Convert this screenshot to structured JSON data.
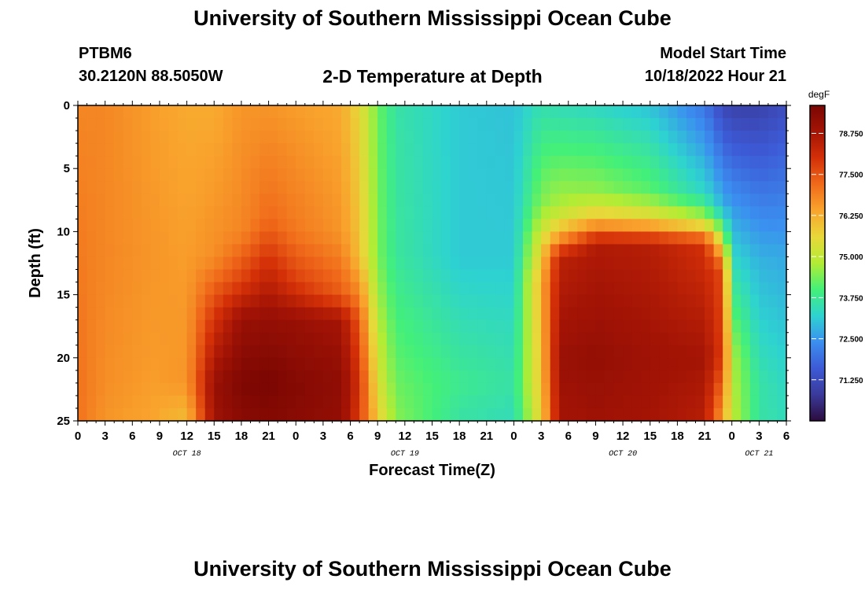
{
  "header": {
    "title": "University of Southern Mississippi Ocean Cube",
    "station": "PTBM6",
    "coords": "30.2120N  88.5050W",
    "plot_title": "2-D Temperature at Depth",
    "model_label": "Model Start Time",
    "model_time": "10/18/2022 Hour 21"
  },
  "footer": {
    "title": "University of Southern Mississippi Ocean Cube"
  },
  "chart_data": {
    "type": "heatmap",
    "title": "2-D Temperature at Depth",
    "xlabel": "Forecast Time(Z)",
    "ylabel": "Depth (ft)",
    "x_start": "10/18/2022 00Z",
    "x_end": "10/21/2022 06Z",
    "x_tick_labels": [
      "0",
      "3",
      "6",
      "9",
      "12",
      "15",
      "18",
      "21",
      "0",
      "3",
      "6",
      "9",
      "12",
      "15",
      "18",
      "21",
      "0",
      "3",
      "6",
      "9",
      "12",
      "15",
      "18",
      "21",
      "0",
      "3",
      "6"
    ],
    "date_labels": [
      {
        "label": "OCT 18",
        "hour": 12
      },
      {
        "label": "OCT 19",
        "hour": 36
      },
      {
        "label": "OCT 20",
        "hour": 60
      },
      {
        "label": "OCT 21",
        "hour": 75
      }
    ],
    "ylim": [
      0,
      25
    ],
    "y_ticks": [
      0,
      5,
      10,
      15,
      20,
      25
    ],
    "colorbar": {
      "unit": "degF",
      "min": 70.0,
      "max": 79.6,
      "tick_labels": [
        "78.750",
        "77.500",
        "76.250",
        "75.000",
        "73.750",
        "72.500",
        "71.250"
      ],
      "colors": [
        "#2c0c3e",
        "#3a3a9a",
        "#3d5ad6",
        "#3b8ff0",
        "#2ed3d0",
        "#44f078",
        "#b2ec35",
        "#e8d83a",
        "#f9a42d",
        "#f06a1a",
        "#d43008",
        "#a41405",
        "#7a0603"
      ]
    },
    "series": [
      {
        "hour": 0,
        "temps_by_depth_ft": {
          "0": 76.8,
          "12": 77.0,
          "22": 77.1,
          "25": 77.1
        }
      },
      {
        "hour": 3,
        "temps_by_depth_ft": {
          "0": 76.8,
          "12": 76.8,
          "22": 76.7,
          "25": 76.6
        }
      },
      {
        "hour": 8,
        "temps_by_depth_ft": {
          "0": 76.5,
          "12": 76.6,
          "22": 76.5,
          "25": 76.4
        }
      },
      {
        "hour": 12,
        "temps_by_depth_ft": {
          "0": 76.3,
          "12": 76.5,
          "22": 76.6,
          "25": 76.0
        }
      },
      {
        "hour": 15,
        "temps_by_depth_ft": {
          "0": 76.3,
          "12": 76.7,
          "17": 78.0,
          "22": 79.0,
          "25": 78.9
        }
      },
      {
        "hour": 18,
        "temps_by_depth_ft": {
          "0": 76.6,
          "10": 76.8,
          "14": 77.8,
          "17": 79.0,
          "22": 79.5,
          "25": 79.3
        }
      },
      {
        "hour": 21,
        "temps_by_depth_ft": {
          "0": 76.6,
          "9": 77.2,
          "13": 78.2,
          "17": 79.1,
          "22": 79.6,
          "25": 79.4
        }
      },
      {
        "hour": 24,
        "temps_by_depth_ft": {
          "0": 76.5,
          "10": 77.0,
          "14": 77.8,
          "17": 79.0,
          "22": 79.4,
          "25": 79.3
        }
      },
      {
        "hour": 29,
        "temps_by_depth_ft": {
          "0": 76.3,
          "10": 76.6,
          "15": 77.4,
          "17": 78.8,
          "22": 79.2,
          "25": 79.1
        }
      },
      {
        "hour": 31,
        "temps_by_depth_ft": {
          "0": 75.6,
          "12": 76.0,
          "17": 77.4,
          "22": 78.0,
          "25": 77.8
        }
      },
      {
        "hour": 33,
        "temps_by_depth_ft": {
          "0": 74.3,
          "12": 74.4,
          "22": 75.4,
          "25": 75.8
        }
      },
      {
        "hour": 35,
        "temps_by_depth_ft": {
          "0": 73.6,
          "12": 73.7,
          "22": 74.3,
          "25": 74.5
        }
      },
      {
        "hour": 42,
        "temps_by_depth_ft": {
          "0": 73.1,
          "12": 73.1,
          "22": 73.8,
          "25": 73.6
        }
      },
      {
        "hour": 48,
        "temps_by_depth_ft": {
          "0": 73.0,
          "12": 73.1,
          "22": 73.6,
          "25": 73.4
        }
      },
      {
        "hour": 51,
        "temps_by_depth_ft": {
          "0": 73.5,
          "8": 74.5,
          "11": 75.5,
          "14": 76.2,
          "22": 75.9,
          "25": 75.7
        }
      },
      {
        "hour": 53,
        "temps_by_depth_ft": {
          "0": 73.4,
          "8": 74.8,
          "10": 76.0,
          "12": 78.4,
          "20": 79.0,
          "25": 78.8
        }
      },
      {
        "hour": 57,
        "temps_by_depth_ft": {
          "0": 73.3,
          "7": 74.6,
          "9": 76.0,
          "11": 78.6,
          "20": 79.1,
          "25": 78.9
        }
      },
      {
        "hour": 63,
        "temps_by_depth_ft": {
          "0": 73.0,
          "7": 74.2,
          "9": 75.7,
          "11": 78.5,
          "20": 78.9,
          "25": 78.8
        }
      },
      {
        "hour": 69,
        "temps_by_depth_ft": {
          "0": 72.0,
          "7": 73.3,
          "9": 74.8,
          "11": 78.0,
          "20": 78.8,
          "25": 78.5
        }
      },
      {
        "hour": 71,
        "temps_by_depth_ft": {
          "0": 71.2,
          "8": 72.8,
          "10": 74.4,
          "13": 77.6,
          "20": 77.8,
          "25": 76.4
        }
      },
      {
        "hour": 72,
        "temps_by_depth_ft": {
          "0": 71.0,
          "12": 73.3,
          "20": 74.8,
          "25": 75.0
        }
      },
      {
        "hour": 75,
        "temps_by_depth_ft": {
          "0": 71.0,
          "12": 72.8,
          "22": 73.6,
          "25": 73.6
        }
      },
      {
        "hour": 78,
        "temps_by_depth_ft": {
          "0": 71.3,
          "12": 72.7,
          "22": 73.3,
          "25": 73.4
        }
      }
    ]
  }
}
